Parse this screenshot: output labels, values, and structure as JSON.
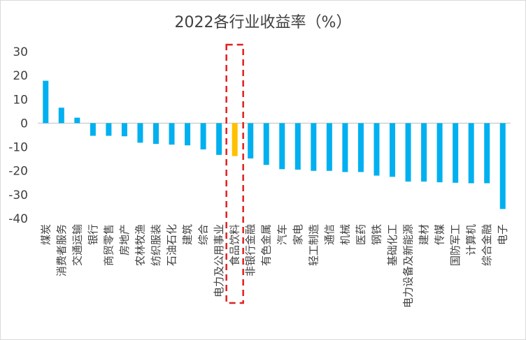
{
  "chart_data": {
    "type": "bar",
    "title": "2022各行业收益率（%）",
    "xlabel": "",
    "ylabel": "",
    "ylim": [
      -40,
      30
    ],
    "yticks": [
      30,
      20,
      10,
      0,
      -10,
      -20,
      -30,
      -40
    ],
    "grid": false,
    "legend": "none",
    "categories": [
      "煤炭",
      "消费者服务",
      "交通运输",
      "银行",
      "商贸零售",
      "房地产",
      "农林牧渔",
      "纺织服装",
      "石油石化",
      "建筑",
      "综合",
      "电力及公用事业",
      "食品饮料",
      "非银行金融",
      "有色金属",
      "汽车",
      "家电",
      "轻工制造",
      "通信",
      "机械",
      "医药",
      "钢铁",
      "基础化工",
      "电力设备及新能源",
      "建材",
      "传媒",
      "国防军工",
      "计算机",
      "综合金融",
      "电子"
    ],
    "values": [
      17.8,
      6.5,
      2.3,
      -5.3,
      -5.3,
      -5.5,
      -8.2,
      -8.7,
      -9.0,
      -9.3,
      -11.0,
      -13.3,
      -13.8,
      -14.8,
      -17.5,
      -19.3,
      -19.5,
      -20.0,
      -20.0,
      -20.5,
      -20.5,
      -22.0,
      -22.5,
      -24.5,
      -24.5,
      -24.8,
      -25.0,
      -25.2,
      -25.2,
      -36.0
    ],
    "highlight_index": 12,
    "colors": {
      "bar": "#00b0f0",
      "highlight": "#ffc000",
      "highlight_box": "#e02020",
      "axis": "#bfbfbf",
      "text": "#404040"
    }
  }
}
